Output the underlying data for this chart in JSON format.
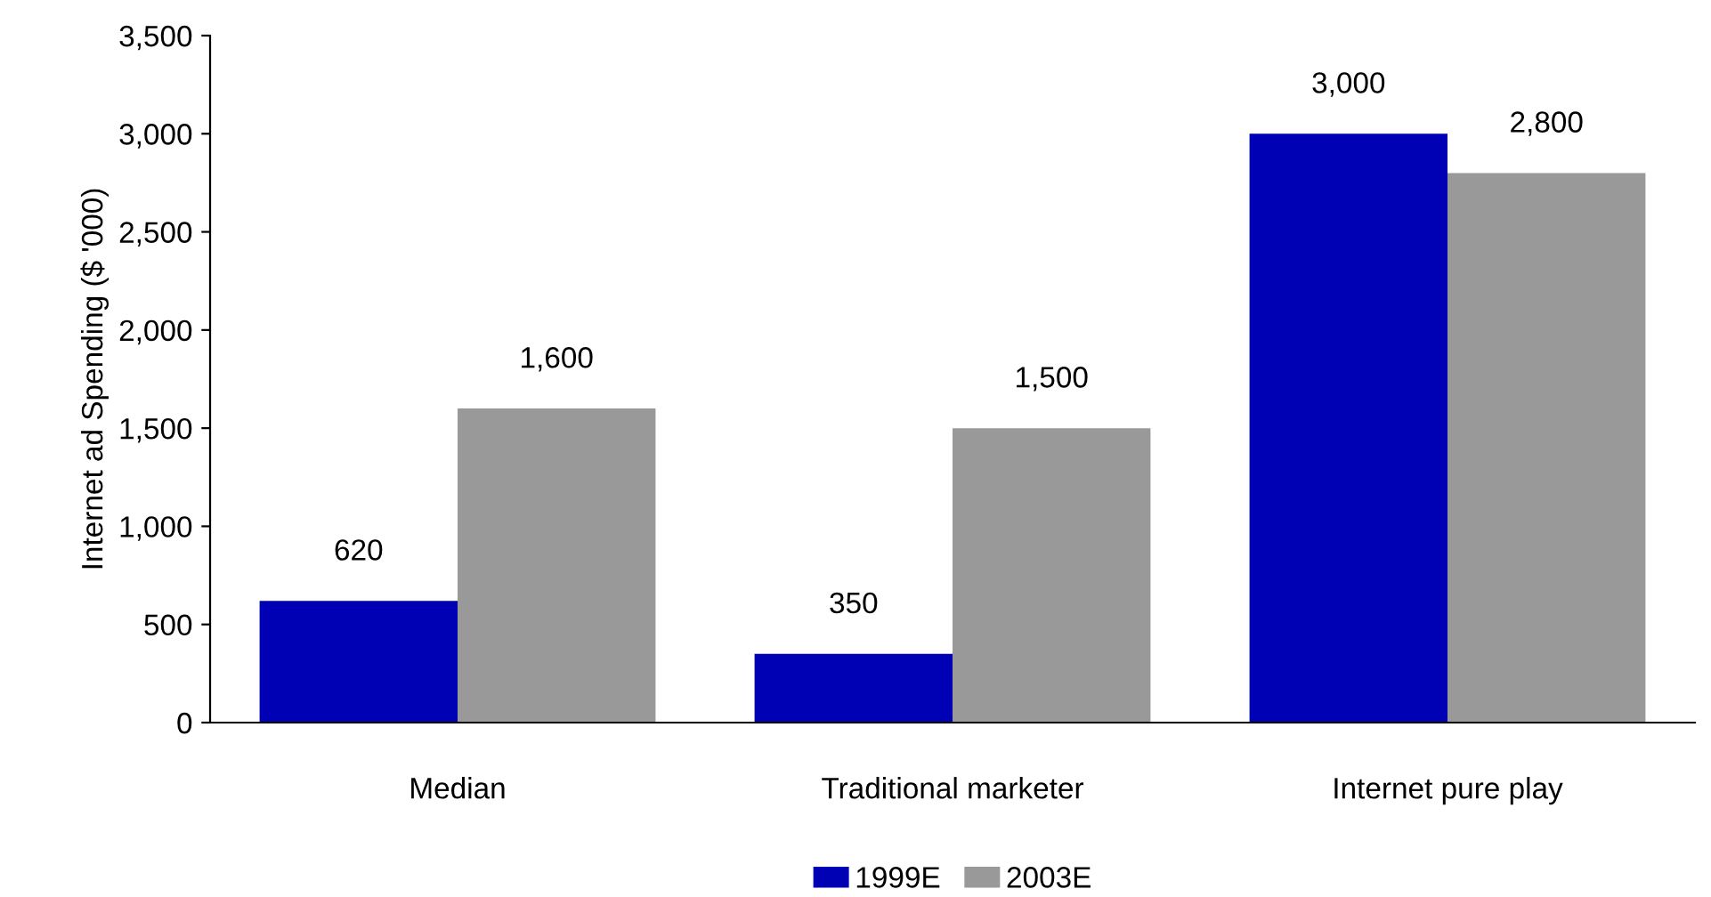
{
  "chart_data": {
    "type": "bar",
    "ylabel": "Internet ad Spending ($ '000)",
    "categories": [
      "Median",
      "Traditional marketer",
      "Internet pure play"
    ],
    "series": [
      {
        "name": "1999E",
        "color": "#0000b4",
        "values": [
          620,
          350,
          3000
        ],
        "value_labels": [
          "620",
          "350",
          "3,000"
        ]
      },
      {
        "name": "2003E",
        "color": "#999999",
        "values": [
          1600,
          1500,
          2800
        ],
        "value_labels": [
          "1,600",
          "1,500",
          "2,800"
        ]
      }
    ],
    "ylim": [
      0,
      3500
    ],
    "yticks": [
      {
        "value": 0,
        "label": "0"
      },
      {
        "value": 500,
        "label": "500"
      },
      {
        "value": 1000,
        "label": "1,000"
      },
      {
        "value": 1500,
        "label": "1,500"
      },
      {
        "value": 2000,
        "label": "2,000"
      },
      {
        "value": 2500,
        "label": "2,500"
      },
      {
        "value": 3000,
        "label": "3,000"
      },
      {
        "value": 3500,
        "label": "3,500"
      }
    ],
    "grid": false,
    "legend": "bottom"
  }
}
